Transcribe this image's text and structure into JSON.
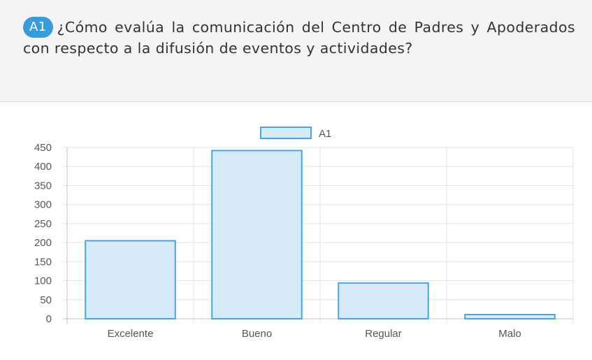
{
  "question": {
    "badge": "A1",
    "text": "¿Cómo evalúa la comunicación del Centro de Padres y Apoderados con respecto a la difusión de eventos y actividades?"
  },
  "colors": {
    "badge": "#3a9bdb",
    "bar_fill": "#d6eaf8",
    "bar_stroke": "#46a6e3",
    "grid": "#e3e3e3",
    "tick_text": "#555555"
  },
  "chart_data": {
    "type": "bar",
    "categories": [
      "Excelente",
      "Bueno",
      "Regular",
      "Malo"
    ],
    "series": [
      {
        "name": "A1",
        "values": [
          205,
          442,
          94,
          11
        ]
      }
    ],
    "ylim": [
      0,
      450
    ],
    "yticks": [
      0,
      50,
      100,
      150,
      200,
      250,
      300,
      350,
      400,
      450
    ],
    "legend": "top-center",
    "grid": true
  }
}
